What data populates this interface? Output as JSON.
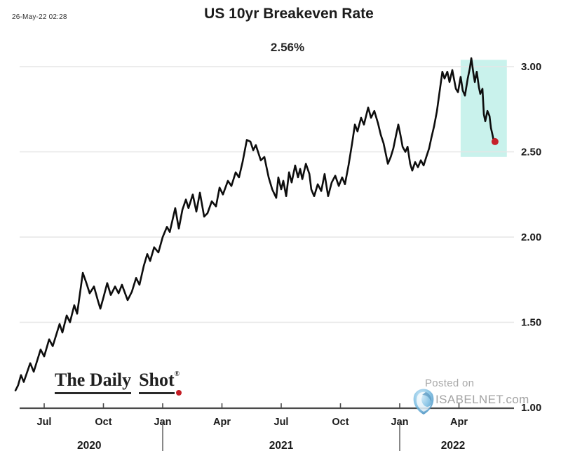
{
  "meta": {
    "timestamp": "26-May-22 02:28"
  },
  "chart": {
    "title": "US 10yr Breakeven Rate",
    "current_value_label": "2.56%"
  },
  "watermarks": {
    "daily_shot": {
      "part1": "The Daily",
      "part2": "Shot",
      "registered": "®"
    },
    "isabelnet": {
      "line1": "Posted on",
      "line2": "ISABELNET.com"
    }
  },
  "chart_data": {
    "type": "line",
    "title": "US 10yr Breakeven Rate",
    "annotation_value": "2.56%",
    "xlabel": "",
    "ylabel": "",
    "xlim": [
      2020.379,
      2022.452
    ],
    "ylim": [
      1.0,
      3.05
    ],
    "grid": "horizontal",
    "legend": "none",
    "line_color": "#0d0d0d",
    "grid_color": "#e6e6e6",
    "axis_color": "#4a4a4a",
    "label_color": "#1a1a1a",
    "y_ticks": [
      {
        "v": 1.0,
        "label": "1.00"
      },
      {
        "v": 1.5,
        "label": "1.50"
      },
      {
        "v": 2.0,
        "label": "2.00"
      },
      {
        "v": 2.5,
        "label": "2.50"
      },
      {
        "v": 3.0,
        "label": "3.00"
      }
    ],
    "x_ticks": [
      {
        "t": 2020.5,
        "label": "Jul"
      },
      {
        "t": 2020.75,
        "label": "Oct"
      },
      {
        "t": 2021.0,
        "label": "Jan"
      },
      {
        "t": 2021.25,
        "label": "Apr"
      },
      {
        "t": 2021.5,
        "label": "Jul"
      },
      {
        "t": 2021.75,
        "label": "Oct"
      },
      {
        "t": 2022.0,
        "label": "Jan"
      },
      {
        "t": 2022.25,
        "label": "Apr"
      }
    ],
    "year_labels": [
      {
        "t": 2020.69,
        "label": "2020"
      },
      {
        "t": 2021.5,
        "label": "2021"
      },
      {
        "t": 2022.225,
        "label": "2022"
      }
    ],
    "year_separators": [
      2021.0,
      2022.0
    ],
    "highlight_region": {
      "t0": 2022.257,
      "t1": 2022.452,
      "v0": 2.47,
      "v1": 3.04,
      "color": "#c9f2ec"
    },
    "end_marker": {
      "t": 2022.402,
      "v": 2.56,
      "color": "#c6202a"
    },
    "series": [
      {
        "name": "US 10yr Breakeven Rate",
        "points": [
          [
            2020.379,
            1.1
          ],
          [
            2020.39,
            1.13
          ],
          [
            2020.402,
            1.19
          ],
          [
            2020.414,
            1.15
          ],
          [
            2020.441,
            1.26
          ],
          [
            2020.456,
            1.21
          ],
          [
            2020.485,
            1.34
          ],
          [
            2020.5,
            1.3
          ],
          [
            2020.521,
            1.4
          ],
          [
            2020.536,
            1.36
          ],
          [
            2020.565,
            1.49
          ],
          [
            2020.577,
            1.44
          ],
          [
            2020.595,
            1.54
          ],
          [
            2020.609,
            1.5
          ],
          [
            2020.627,
            1.6
          ],
          [
            2020.639,
            1.55
          ],
          [
            2020.663,
            1.79
          ],
          [
            2020.678,
            1.73
          ],
          [
            2020.692,
            1.67
          ],
          [
            2020.71,
            1.71
          ],
          [
            2020.728,
            1.62
          ],
          [
            2020.737,
            1.58
          ],
          [
            2020.751,
            1.65
          ],
          [
            2020.766,
            1.73
          ],
          [
            2020.781,
            1.66
          ],
          [
            2020.799,
            1.71
          ],
          [
            2020.814,
            1.67
          ],
          [
            2020.828,
            1.72
          ],
          [
            2020.852,
            1.63
          ],
          [
            2020.87,
            1.68
          ],
          [
            2020.888,
            1.76
          ],
          [
            2020.902,
            1.72
          ],
          [
            2020.92,
            1.83
          ],
          [
            2020.935,
            1.9
          ],
          [
            2020.947,
            1.86
          ],
          [
            2020.964,
            1.94
          ],
          [
            2020.982,
            1.91
          ],
          [
            2021.0,
            2.0
          ],
          [
            2021.018,
            2.06
          ],
          [
            2021.03,
            2.03
          ],
          [
            2021.053,
            2.17
          ],
          [
            2021.068,
            2.05
          ],
          [
            2021.083,
            2.16
          ],
          [
            2021.098,
            2.22
          ],
          [
            2021.109,
            2.17
          ],
          [
            2021.127,
            2.25
          ],
          [
            2021.142,
            2.15
          ],
          [
            2021.157,
            2.26
          ],
          [
            2021.175,
            2.12
          ],
          [
            2021.189,
            2.14
          ],
          [
            2021.207,
            2.21
          ],
          [
            2021.225,
            2.18
          ],
          [
            2021.24,
            2.29
          ],
          [
            2021.254,
            2.25
          ],
          [
            2021.275,
            2.33
          ],
          [
            2021.29,
            2.3
          ],
          [
            2021.308,
            2.38
          ],
          [
            2021.322,
            2.35
          ],
          [
            2021.337,
            2.44
          ],
          [
            2021.355,
            2.57
          ],
          [
            2021.37,
            2.56
          ],
          [
            2021.382,
            2.51
          ],
          [
            2021.393,
            2.54
          ],
          [
            2021.414,
            2.45
          ],
          [
            2021.429,
            2.47
          ],
          [
            2021.447,
            2.35
          ],
          [
            2021.462,
            2.28
          ],
          [
            2021.479,
            2.23
          ],
          [
            2021.488,
            2.35
          ],
          [
            2021.5,
            2.28
          ],
          [
            2021.509,
            2.33
          ],
          [
            2021.521,
            2.24
          ],
          [
            2021.533,
            2.38
          ],
          [
            2021.544,
            2.32
          ],
          [
            2021.559,
            2.42
          ],
          [
            2021.571,
            2.35
          ],
          [
            2021.58,
            2.4
          ],
          [
            2021.589,
            2.34
          ],
          [
            2021.604,
            2.43
          ],
          [
            2021.619,
            2.37
          ],
          [
            2021.627,
            2.28
          ],
          [
            2021.639,
            2.24
          ],
          [
            2021.654,
            2.31
          ],
          [
            2021.669,
            2.27
          ],
          [
            2021.683,
            2.37
          ],
          [
            2021.698,
            2.24
          ],
          [
            2021.713,
            2.32
          ],
          [
            2021.728,
            2.36
          ],
          [
            2021.743,
            2.3
          ],
          [
            2021.757,
            2.35
          ],
          [
            2021.769,
            2.31
          ],
          [
            2021.784,
            2.42
          ],
          [
            2021.799,
            2.55
          ],
          [
            2021.811,
            2.66
          ],
          [
            2021.822,
            2.62
          ],
          [
            2021.837,
            2.7
          ],
          [
            2021.849,
            2.66
          ],
          [
            2021.867,
            2.76
          ],
          [
            2021.879,
            2.7
          ],
          [
            2021.893,
            2.74
          ],
          [
            2021.908,
            2.67
          ],
          [
            2021.92,
            2.6
          ],
          [
            2021.932,
            2.55
          ],
          [
            2021.944,
            2.47
          ],
          [
            2021.95,
            2.43
          ],
          [
            2021.962,
            2.47
          ],
          [
            2021.973,
            2.52
          ],
          [
            2021.985,
            2.6
          ],
          [
            2021.994,
            2.66
          ],
          [
            2022.003,
            2.6
          ],
          [
            2022.012,
            2.53
          ],
          [
            2022.024,
            2.5
          ],
          [
            2022.033,
            2.53
          ],
          [
            2022.044,
            2.43
          ],
          [
            2022.053,
            2.39
          ],
          [
            2022.065,
            2.44
          ],
          [
            2022.077,
            2.41
          ],
          [
            2022.089,
            2.45
          ],
          [
            2022.101,
            2.42
          ],
          [
            2022.112,
            2.47
          ],
          [
            2022.124,
            2.52
          ],
          [
            2022.133,
            2.58
          ],
          [
            2022.145,
            2.65
          ],
          [
            2022.157,
            2.74
          ],
          [
            2022.169,
            2.86
          ],
          [
            2022.18,
            2.97
          ],
          [
            2022.189,
            2.93
          ],
          [
            2022.201,
            2.97
          ],
          [
            2022.21,
            2.91
          ],
          [
            2022.222,
            2.98
          ],
          [
            2022.237,
            2.87
          ],
          [
            2022.246,
            2.85
          ],
          [
            2022.257,
            2.94
          ],
          [
            2022.266,
            2.86
          ],
          [
            2022.275,
            2.83
          ],
          [
            2022.287,
            2.93
          ],
          [
            2022.296,
            2.99
          ],
          [
            2022.302,
            3.05
          ],
          [
            2022.311,
            2.96
          ],
          [
            2022.317,
            2.91
          ],
          [
            2022.325,
            2.97
          ],
          [
            2022.334,
            2.88
          ],
          [
            2022.34,
            2.84
          ],
          [
            2022.349,
            2.87
          ],
          [
            2022.355,
            2.72
          ],
          [
            2022.361,
            2.68
          ],
          [
            2022.37,
            2.74
          ],
          [
            2022.379,
            2.71
          ],
          [
            2022.385,
            2.64
          ],
          [
            2022.39,
            2.61
          ],
          [
            2022.396,
            2.57
          ],
          [
            2022.402,
            2.56
          ]
        ]
      }
    ]
  }
}
